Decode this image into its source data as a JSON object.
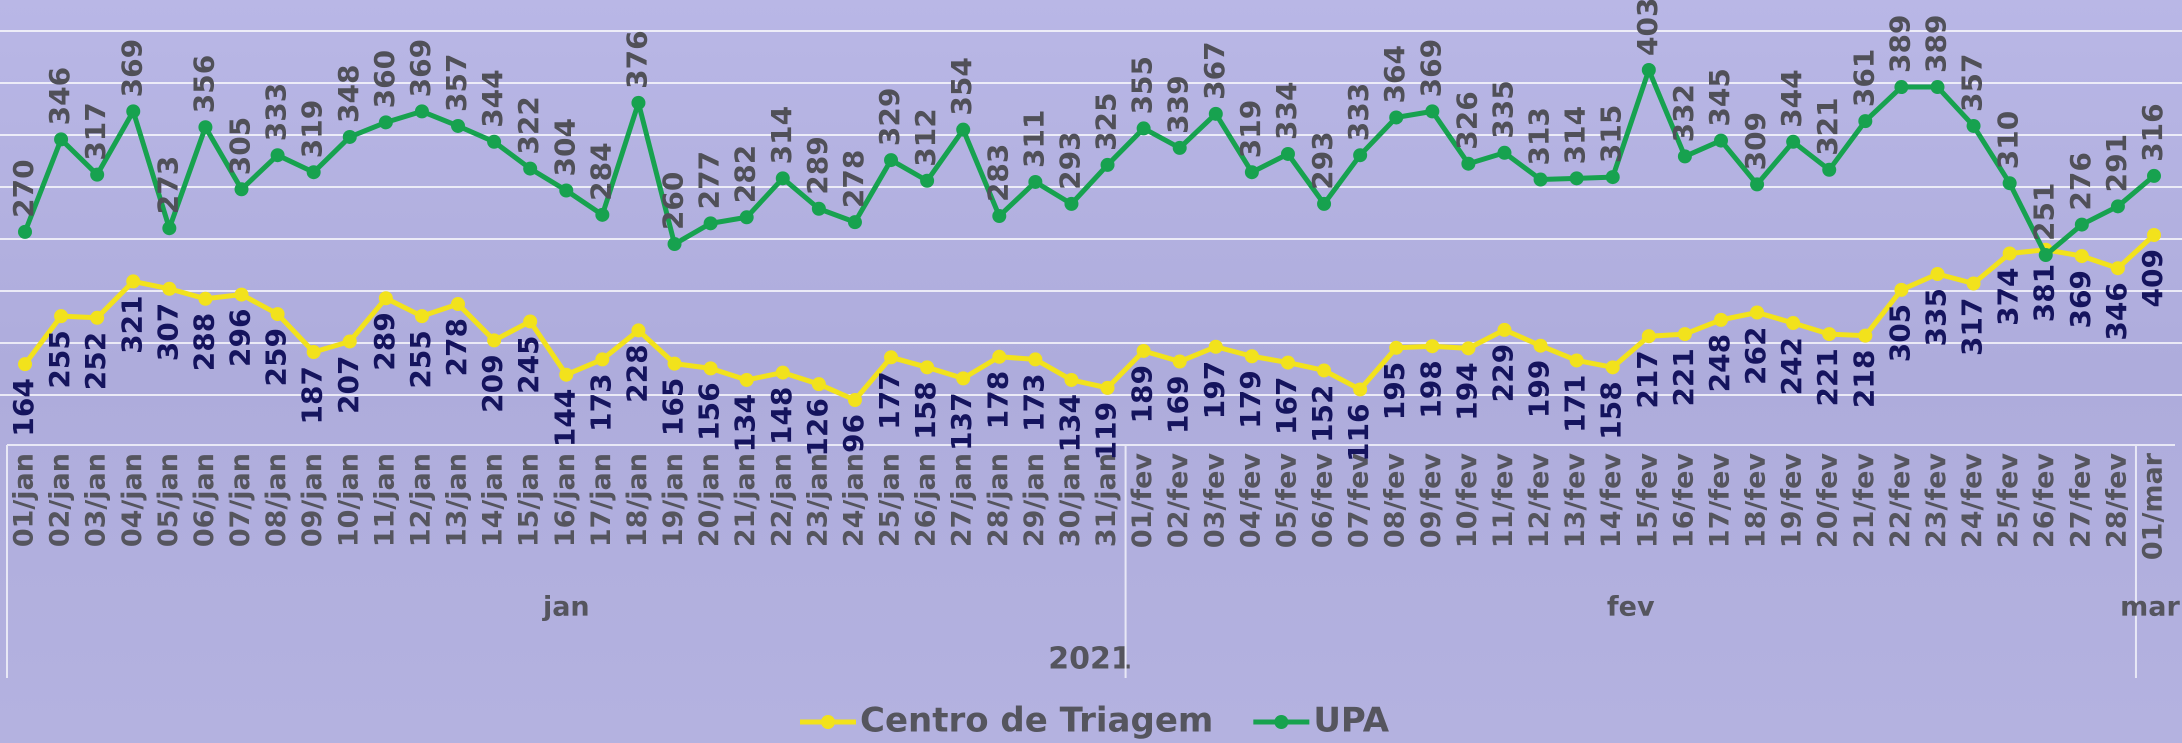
{
  "chart_data": {
    "type": "line",
    "categories": [
      "01/jan",
      "02/jan",
      "03/jan",
      "04/jan",
      "05/jan",
      "06/jan",
      "07/jan",
      "08/jan",
      "09/jan",
      "10/jan",
      "11/jan",
      "12/jan",
      "13/jan",
      "14/jan",
      "15/jan",
      "16/jan",
      "17/jan",
      "18/jan",
      "19/jan",
      "20/jan",
      "21/jan",
      "22/jan",
      "23/jan",
      "24/jan",
      "25/jan",
      "26/jan",
      "27/jan",
      "28/jan",
      "29/jan",
      "30/jan",
      "31/jan",
      "01/fev",
      "02/fev",
      "03/fev",
      "04/fev",
      "05/fev",
      "06/fev",
      "07/fev",
      "08/fev",
      "09/fev",
      "10/fev",
      "11/fev",
      "12/fev",
      "13/fev",
      "14/fev",
      "15/fev",
      "16/fev",
      "17/fev",
      "18/fev",
      "19/fev",
      "20/fev",
      "21/fev",
      "22/fev",
      "23/fev",
      "24/fev",
      "25/fev",
      "26/fev",
      "27/fev",
      "28/fev",
      "01/mar"
    ],
    "groups": [
      "jan",
      "fev",
      "mar"
    ],
    "x_label": "2021",
    "series": [
      {
        "name": "Centro de Triagem",
        "color": "#f2e21c",
        "label_color": "#15145e",
        "values": [
          164,
          255,
          252,
          321,
          307,
          288,
          296,
          259,
          187,
          207,
          289,
          255,
          278,
          209,
          245,
          144,
          173,
          228,
          165,
          156,
          134,
          148,
          126,
          96,
          177,
          158,
          137,
          178,
          173,
          134,
          119,
          189,
          169,
          197,
          179,
          167,
          152,
          116,
          195,
          198,
          194,
          229,
          199,
          171,
          158,
          217,
          221,
          248,
          262,
          242,
          221,
          218,
          305,
          335,
          317,
          374,
          381,
          369,
          346,
          409
        ]
      },
      {
        "name": "UPA",
        "color": "#17a24f",
        "label_color": "#505058",
        "values": [
          270,
          346,
          317,
          369,
          273,
          356,
          305,
          333,
          319,
          348,
          360,
          369,
          357,
          344,
          322,
          304,
          284,
          376,
          260,
          277,
          282,
          314,
          289,
          278,
          329,
          312,
          354,
          283,
          311,
          293,
          325,
          355,
          339,
          367,
          319,
          334,
          293,
          333,
          364,
          369,
          326,
          335,
          313,
          314,
          315,
          403,
          332,
          345,
          309,
          344,
          321,
          361,
          389,
          389,
          357,
          310,
          251,
          276,
          291,
          316
        ]
      }
    ],
    "legend": "bottom"
  }
}
